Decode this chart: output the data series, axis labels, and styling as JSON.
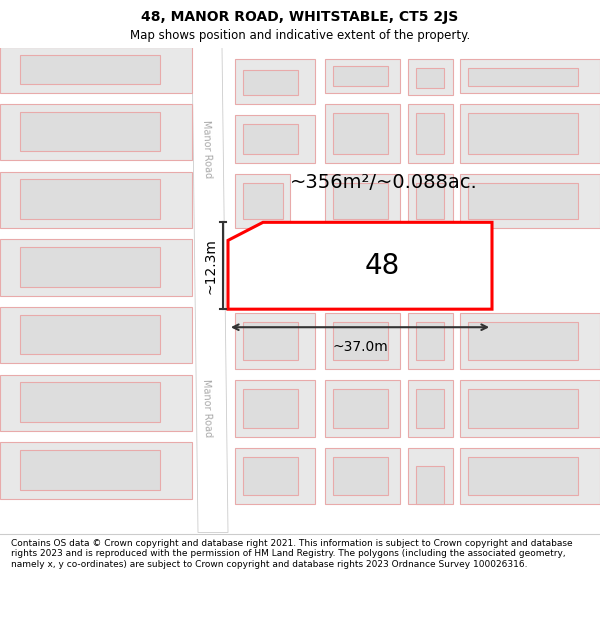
{
  "title": "48, MANOR ROAD, WHITSTABLE, CT5 2JS",
  "subtitle": "Map shows position and indicative extent of the property.",
  "footer": "Contains OS data © Crown copyright and database right 2021. This information is subject to Crown copyright and database rights 2023 and is reproduced with the permission of HM Land Registry. The polygons (including the associated geometry, namely x, y co-ordinates) are subject to Crown copyright and database rights 2023 Ordnance Survey 100026316.",
  "bg_color": "#ffffff",
  "map_bg": "#ffffff",
  "building_outline": "#e8aaaa",
  "building_fill": "#e8e8e8",
  "highlight_outline": "#ff0000",
  "highlight_fill": "#ffffff",
  "road_fill": "#ffffff",
  "road_edge": "#cccccc",
  "area_label": "~356m²/~0.088ac.",
  "number_label": "48",
  "width_label": "~37.0m",
  "height_label": "~12.3m",
  "road_label_color": "#aaaaaa",
  "dim_color": "#333333",
  "title_fontsize": 10,
  "subtitle_fontsize": 8.5,
  "footer_fontsize": 6.5,
  "area_fontsize": 14,
  "number_fontsize": 20,
  "dim_fontsize": 10,
  "road_fontsize": 7
}
